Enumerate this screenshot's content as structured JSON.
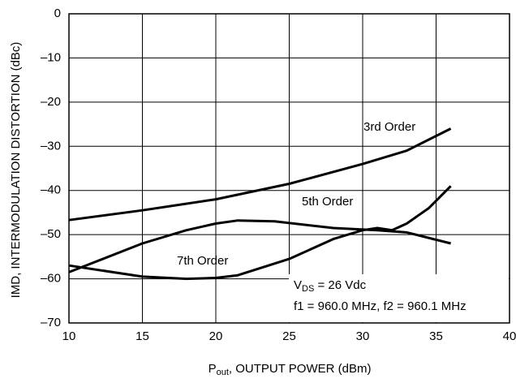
{
  "chart_data": {
    "type": "line",
    "xlabel": {
      "main": "P",
      "sub": "out",
      "rest": ", OUTPUT POWER (dBm)"
    },
    "ylabel": "IMD, INTERMODULATION DISTORTION (dBc)",
    "xlim": [
      10,
      40
    ],
    "xticks": [
      10,
      15,
      20,
      25,
      30,
      35,
      40
    ],
    "ylim": [
      -70,
      0
    ],
    "yticks": [
      0,
      {
        "value": -10,
        "label": "–10"
      },
      {
        "value": -20,
        "label": "–20"
      },
      {
        "value": -30,
        "label": "–30"
      },
      {
        "value": -40,
        "label": "–40"
      },
      {
        "value": -50,
        "label": "–50"
      },
      {
        "value": -60,
        "label": "–60"
      },
      {
        "value": -70,
        "label": "–70"
      }
    ],
    "grid": true,
    "series": [
      {
        "name": "3rd Order",
        "color": "#000000",
        "x": [
          10,
          15,
          20,
          25,
          30,
          33,
          36
        ],
        "values": [
          -46.7,
          -44.5,
          -42,
          -38.5,
          -34,
          -31,
          -26
        ]
      },
      {
        "name": "5th Order",
        "color": "#000000",
        "x": [
          10,
          15,
          18,
          20,
          21.5,
          24,
          28,
          31,
          33,
          36
        ],
        "values": [
          -58.5,
          -52,
          -49,
          -47.5,
          -46.8,
          -47,
          -48.5,
          -49,
          -49.5,
          -52
        ]
      },
      {
        "name": "7th Order",
        "color": "#000000",
        "x": [
          10,
          15,
          18,
          20,
          21.5,
          25,
          28,
          30,
          31,
          32,
          33,
          34.5,
          36
        ],
        "values": [
          -57,
          -59.5,
          -60,
          -59.8,
          -59.2,
          -55.5,
          -51,
          -49,
          -48.5,
          -49,
          -47.5,
          -44,
          -39
        ]
      }
    ],
    "annotations": [
      {
        "main": "V",
        "sub": "DS",
        "rest": " = 26 Vdc"
      },
      {
        "main": "f1 = 960.0 MHz, f2 = 960.1 MHz"
      }
    ]
  }
}
